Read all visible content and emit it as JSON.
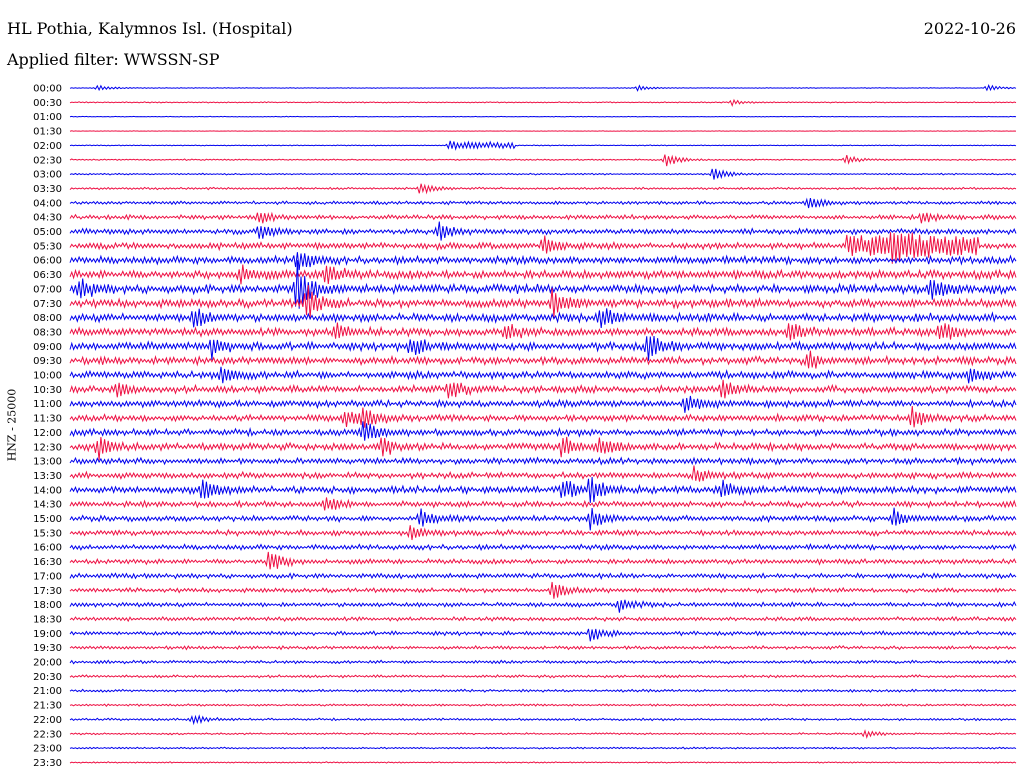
{
  "header": {
    "station": "HL Pothia, Kalymnos Isl. (Hospital)",
    "date": "2022-10-26",
    "filter": "Applied filter: WWSSN-SP"
  },
  "chart_data": {
    "type": "line",
    "ylabel": "HNZ - 25000",
    "colors": [
      "#0000ee",
      "#ee1144"
    ],
    "row_labels": [
      "00:00",
      "00:30",
      "01:00",
      "01:30",
      "02:00",
      "02:30",
      "03:00",
      "03:30",
      "04:00",
      "04:30",
      "05:00",
      "05:30",
      "06:00",
      "06:30",
      "07:00",
      "07:30",
      "08:00",
      "08:30",
      "09:00",
      "09:30",
      "10:00",
      "10:30",
      "11:00",
      "11:30",
      "12:00",
      "12:30",
      "13:00",
      "13:30",
      "14:00",
      "14:30",
      "15:00",
      "15:30",
      "16:00",
      "16:30",
      "17:00",
      "17:30",
      "18:00",
      "18:30",
      "19:00",
      "19:30",
      "20:00",
      "20:30",
      "21:00",
      "21:30",
      "22:00",
      "22:30",
      "23:00",
      "23:30"
    ],
    "noise_level": [
      0.3,
      0.5,
      0.3,
      0.2,
      0.4,
      0.6,
      0.7,
      1.0,
      1.5,
      2.0,
      2.5,
      3.0,
      3.5,
      3.8,
      4.0,
      3.8,
      3.8,
      3.6,
      3.6,
      3.4,
      3.4,
      3.2,
      3.2,
      3.0,
      3.0,
      3.2,
      2.8,
      2.8,
      3.2,
      2.6,
      2.6,
      2.4,
      2.4,
      2.2,
      2.2,
      2.0,
      2.0,
      1.8,
      1.8,
      1.5,
      1.4,
      1.2,
      1.2,
      1.0,
      1.0,
      0.8,
      0.8,
      0.6
    ],
    "events": [
      {
        "row": 0,
        "t": 0.03,
        "amp": 3
      },
      {
        "row": 0,
        "t": 0.6,
        "amp": 2.5
      },
      {
        "row": 0,
        "t": 0.97,
        "amp": 3
      },
      {
        "row": 1,
        "t": 0.7,
        "amp": 3
      },
      {
        "row": 4,
        "t": 0.4,
        "amp": 2
      },
      {
        "row": 5,
        "t": 0.63,
        "amp": 8
      },
      {
        "row": 5,
        "t": 0.82,
        "amp": 5
      },
      {
        "row": 6,
        "t": 0.68,
        "amp": 7
      },
      {
        "row": 7,
        "t": 0.37,
        "amp": 6
      },
      {
        "row": 8,
        "t": 0.78,
        "amp": 7
      },
      {
        "row": 9,
        "t": 0.2,
        "amp": 7
      },
      {
        "row": 9,
        "t": 0.9,
        "amp": 6
      },
      {
        "row": 10,
        "t": 0.2,
        "amp": 9
      },
      {
        "row": 10,
        "t": 0.39,
        "amp": 8
      },
      {
        "row": 11,
        "t": 0.5,
        "amp": 9
      },
      {
        "row": 11,
        "t": 0.87,
        "amp": 14
      },
      {
        "row": 12,
        "t": 0.24,
        "amp": 12
      },
      {
        "row": 13,
        "t": 0.18,
        "amp": 9
      },
      {
        "row": 13,
        "t": 0.27,
        "amp": 12
      },
      {
        "row": 14,
        "t": 0.01,
        "amp": 11
      },
      {
        "row": 14,
        "t": 0.24,
        "amp": 26
      },
      {
        "row": 14,
        "t": 0.91,
        "amp": 14
      },
      {
        "row": 15,
        "t": 0.25,
        "amp": 18
      },
      {
        "row": 15,
        "t": 0.51,
        "amp": 13
      },
      {
        "row": 16,
        "t": 0.13,
        "amp": 11
      },
      {
        "row": 16,
        "t": 0.56,
        "amp": 13
      },
      {
        "row": 17,
        "t": 0.28,
        "amp": 9
      },
      {
        "row": 17,
        "t": 0.46,
        "amp": 9
      },
      {
        "row": 17,
        "t": 0.76,
        "amp": 11
      },
      {
        "row": 17,
        "t": 0.92,
        "amp": 11
      },
      {
        "row": 18,
        "t": 0.15,
        "amp": 10
      },
      {
        "row": 18,
        "t": 0.36,
        "amp": 10
      },
      {
        "row": 18,
        "t": 0.61,
        "amp": 14
      },
      {
        "row": 19,
        "t": 0.78,
        "amp": 8
      },
      {
        "row": 20,
        "t": 0.16,
        "amp": 9
      },
      {
        "row": 20,
        "t": 0.95,
        "amp": 9
      },
      {
        "row": 21,
        "t": 0.05,
        "amp": 8
      },
      {
        "row": 21,
        "t": 0.4,
        "amp": 9
      },
      {
        "row": 21,
        "t": 0.69,
        "amp": 11
      },
      {
        "row": 22,
        "t": 0.65,
        "amp": 10
      },
      {
        "row": 23,
        "t": 0.29,
        "amp": 9
      },
      {
        "row": 23,
        "t": 0.31,
        "amp": 12
      },
      {
        "row": 23,
        "t": 0.89,
        "amp": 9
      },
      {
        "row": 24,
        "t": 0.31,
        "amp": 12
      },
      {
        "row": 25,
        "t": 0.03,
        "amp": 11
      },
      {
        "row": 25,
        "t": 0.33,
        "amp": 9
      },
      {
        "row": 25,
        "t": 0.52,
        "amp": 10
      },
      {
        "row": 25,
        "t": 0.56,
        "amp": 9
      },
      {
        "row": 27,
        "t": 0.66,
        "amp": 9
      },
      {
        "row": 28,
        "t": 0.14,
        "amp": 12
      },
      {
        "row": 28,
        "t": 0.52,
        "amp": 11
      },
      {
        "row": 28,
        "t": 0.55,
        "amp": 15
      },
      {
        "row": 28,
        "t": 0.69,
        "amp": 9
      },
      {
        "row": 29,
        "t": 0.27,
        "amp": 8
      },
      {
        "row": 30,
        "t": 0.37,
        "amp": 10
      },
      {
        "row": 30,
        "t": 0.55,
        "amp": 12
      },
      {
        "row": 30,
        "t": 0.87,
        "amp": 10
      },
      {
        "row": 31,
        "t": 0.36,
        "amp": 9
      },
      {
        "row": 33,
        "t": 0.21,
        "amp": 13
      },
      {
        "row": 35,
        "t": 0.51,
        "amp": 9
      },
      {
        "row": 36,
        "t": 0.58,
        "amp": 7
      },
      {
        "row": 38,
        "t": 0.55,
        "amp": 8
      },
      {
        "row": 44,
        "t": 0.13,
        "amp": 5
      },
      {
        "row": 45,
        "t": 0.84,
        "amp": 4
      }
    ],
    "bursts": [
      {
        "row": 11,
        "t0": 0.82,
        "t1": 0.96,
        "amp": 9
      },
      {
        "row": 4,
        "t0": 0.4,
        "t1": 0.47,
        "amp": 3
      }
    ]
  }
}
